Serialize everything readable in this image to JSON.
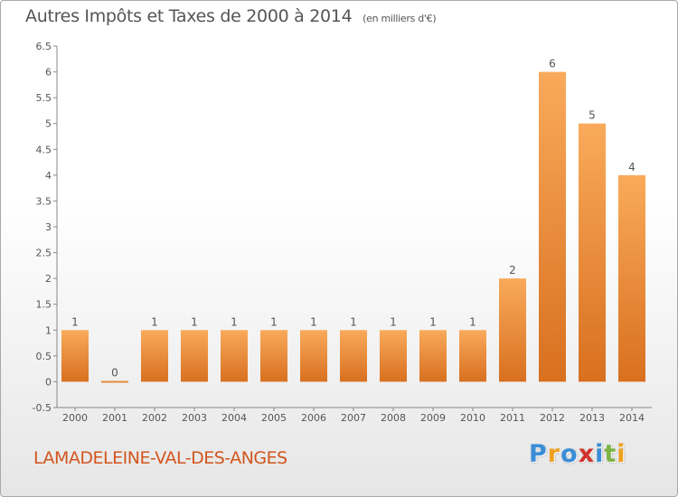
{
  "title": "Autres Impôts et Taxes de 2000 à 2014",
  "unit": "(en milliers d'€)",
  "commune": "LAMADELEINE-VAL-DES-ANGES",
  "logo": {
    "letters": [
      "P",
      "r",
      "o",
      "x",
      "i",
      "t",
      "i"
    ],
    "colors": [
      "#3a8dd6",
      "#f0a020",
      "#3a8dd6",
      "#d2322d",
      "#3a8dd6",
      "#7cb342",
      "#f0a020"
    ]
  },
  "colors": {
    "bar_light": "#f9aa5b",
    "bar_dark": "#d8701f",
    "text": "#555555",
    "brand": "#d2561e"
  },
  "chart_data": {
    "type": "bar",
    "title": "Autres Impôts et Taxes de 2000 à 2014",
    "ylabel": "",
    "xlabel": "",
    "categories": [
      "2000",
      "2001",
      "2002",
      "2003",
      "2004",
      "2005",
      "2006",
      "2007",
      "2008",
      "2009",
      "2010",
      "2011",
      "2012",
      "2013",
      "2014"
    ],
    "values": [
      1,
      0,
      1,
      1,
      1,
      1,
      1,
      1,
      1,
      1,
      1,
      2,
      6,
      5,
      4
    ],
    "data_labels": [
      "1",
      "0",
      "1",
      "1",
      "1",
      "1",
      "1",
      "1",
      "1",
      "1",
      "1",
      "2",
      "6",
      "5",
      "4"
    ],
    "ylim": [
      -0.5,
      6.5
    ],
    "yticks": [
      "-0.5",
      "0",
      "0.5",
      "1",
      "1.5",
      "2",
      "2.5",
      "3",
      "3.5",
      "4",
      "4.5",
      "5",
      "5.5",
      "6",
      "6.5"
    ],
    "ytick_values": [
      -0.5,
      0,
      0.5,
      1,
      1.5,
      2,
      2.5,
      3,
      3.5,
      4,
      4.5,
      5,
      5.5,
      6,
      6.5
    ],
    "grid": false,
    "legend": "none"
  }
}
